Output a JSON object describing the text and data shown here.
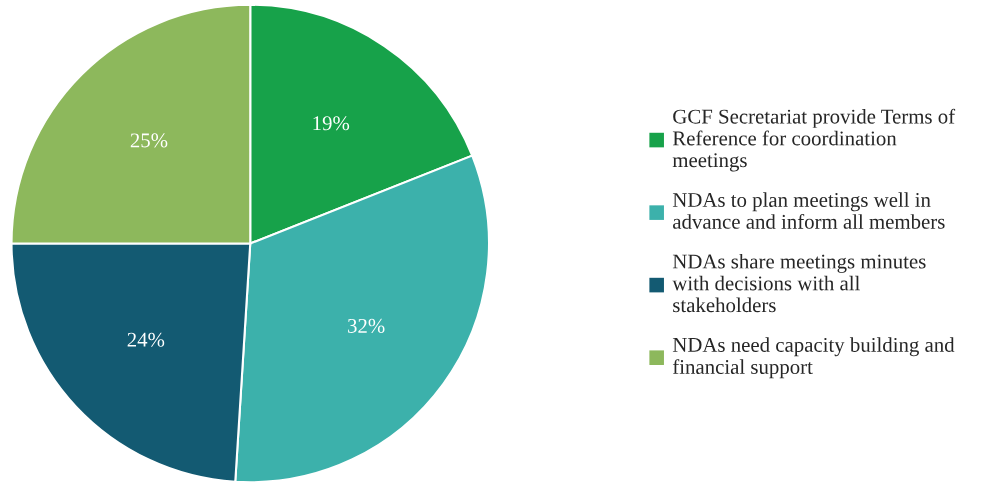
{
  "chart_data": {
    "type": "pie",
    "categories": [
      "GCF Secretariat provide Terms of\nReference for coordination\nmeetings",
      "NDAs to plan meetings well in\nadvance and inform all members",
      "NDAs share meetings minutes\nwith decisions with all\nstakeholders",
      "NDAs need capacity building and\nfinancial support"
    ],
    "values": [
      19,
      32,
      24,
      25
    ],
    "value_labels": [
      "19%",
      "32%",
      "24%",
      "25%"
    ],
    "colors": [
      "#17a24a",
      "#3cb1ab",
      "#135a72",
      "#8db85c"
    ],
    "legend": "right"
  }
}
